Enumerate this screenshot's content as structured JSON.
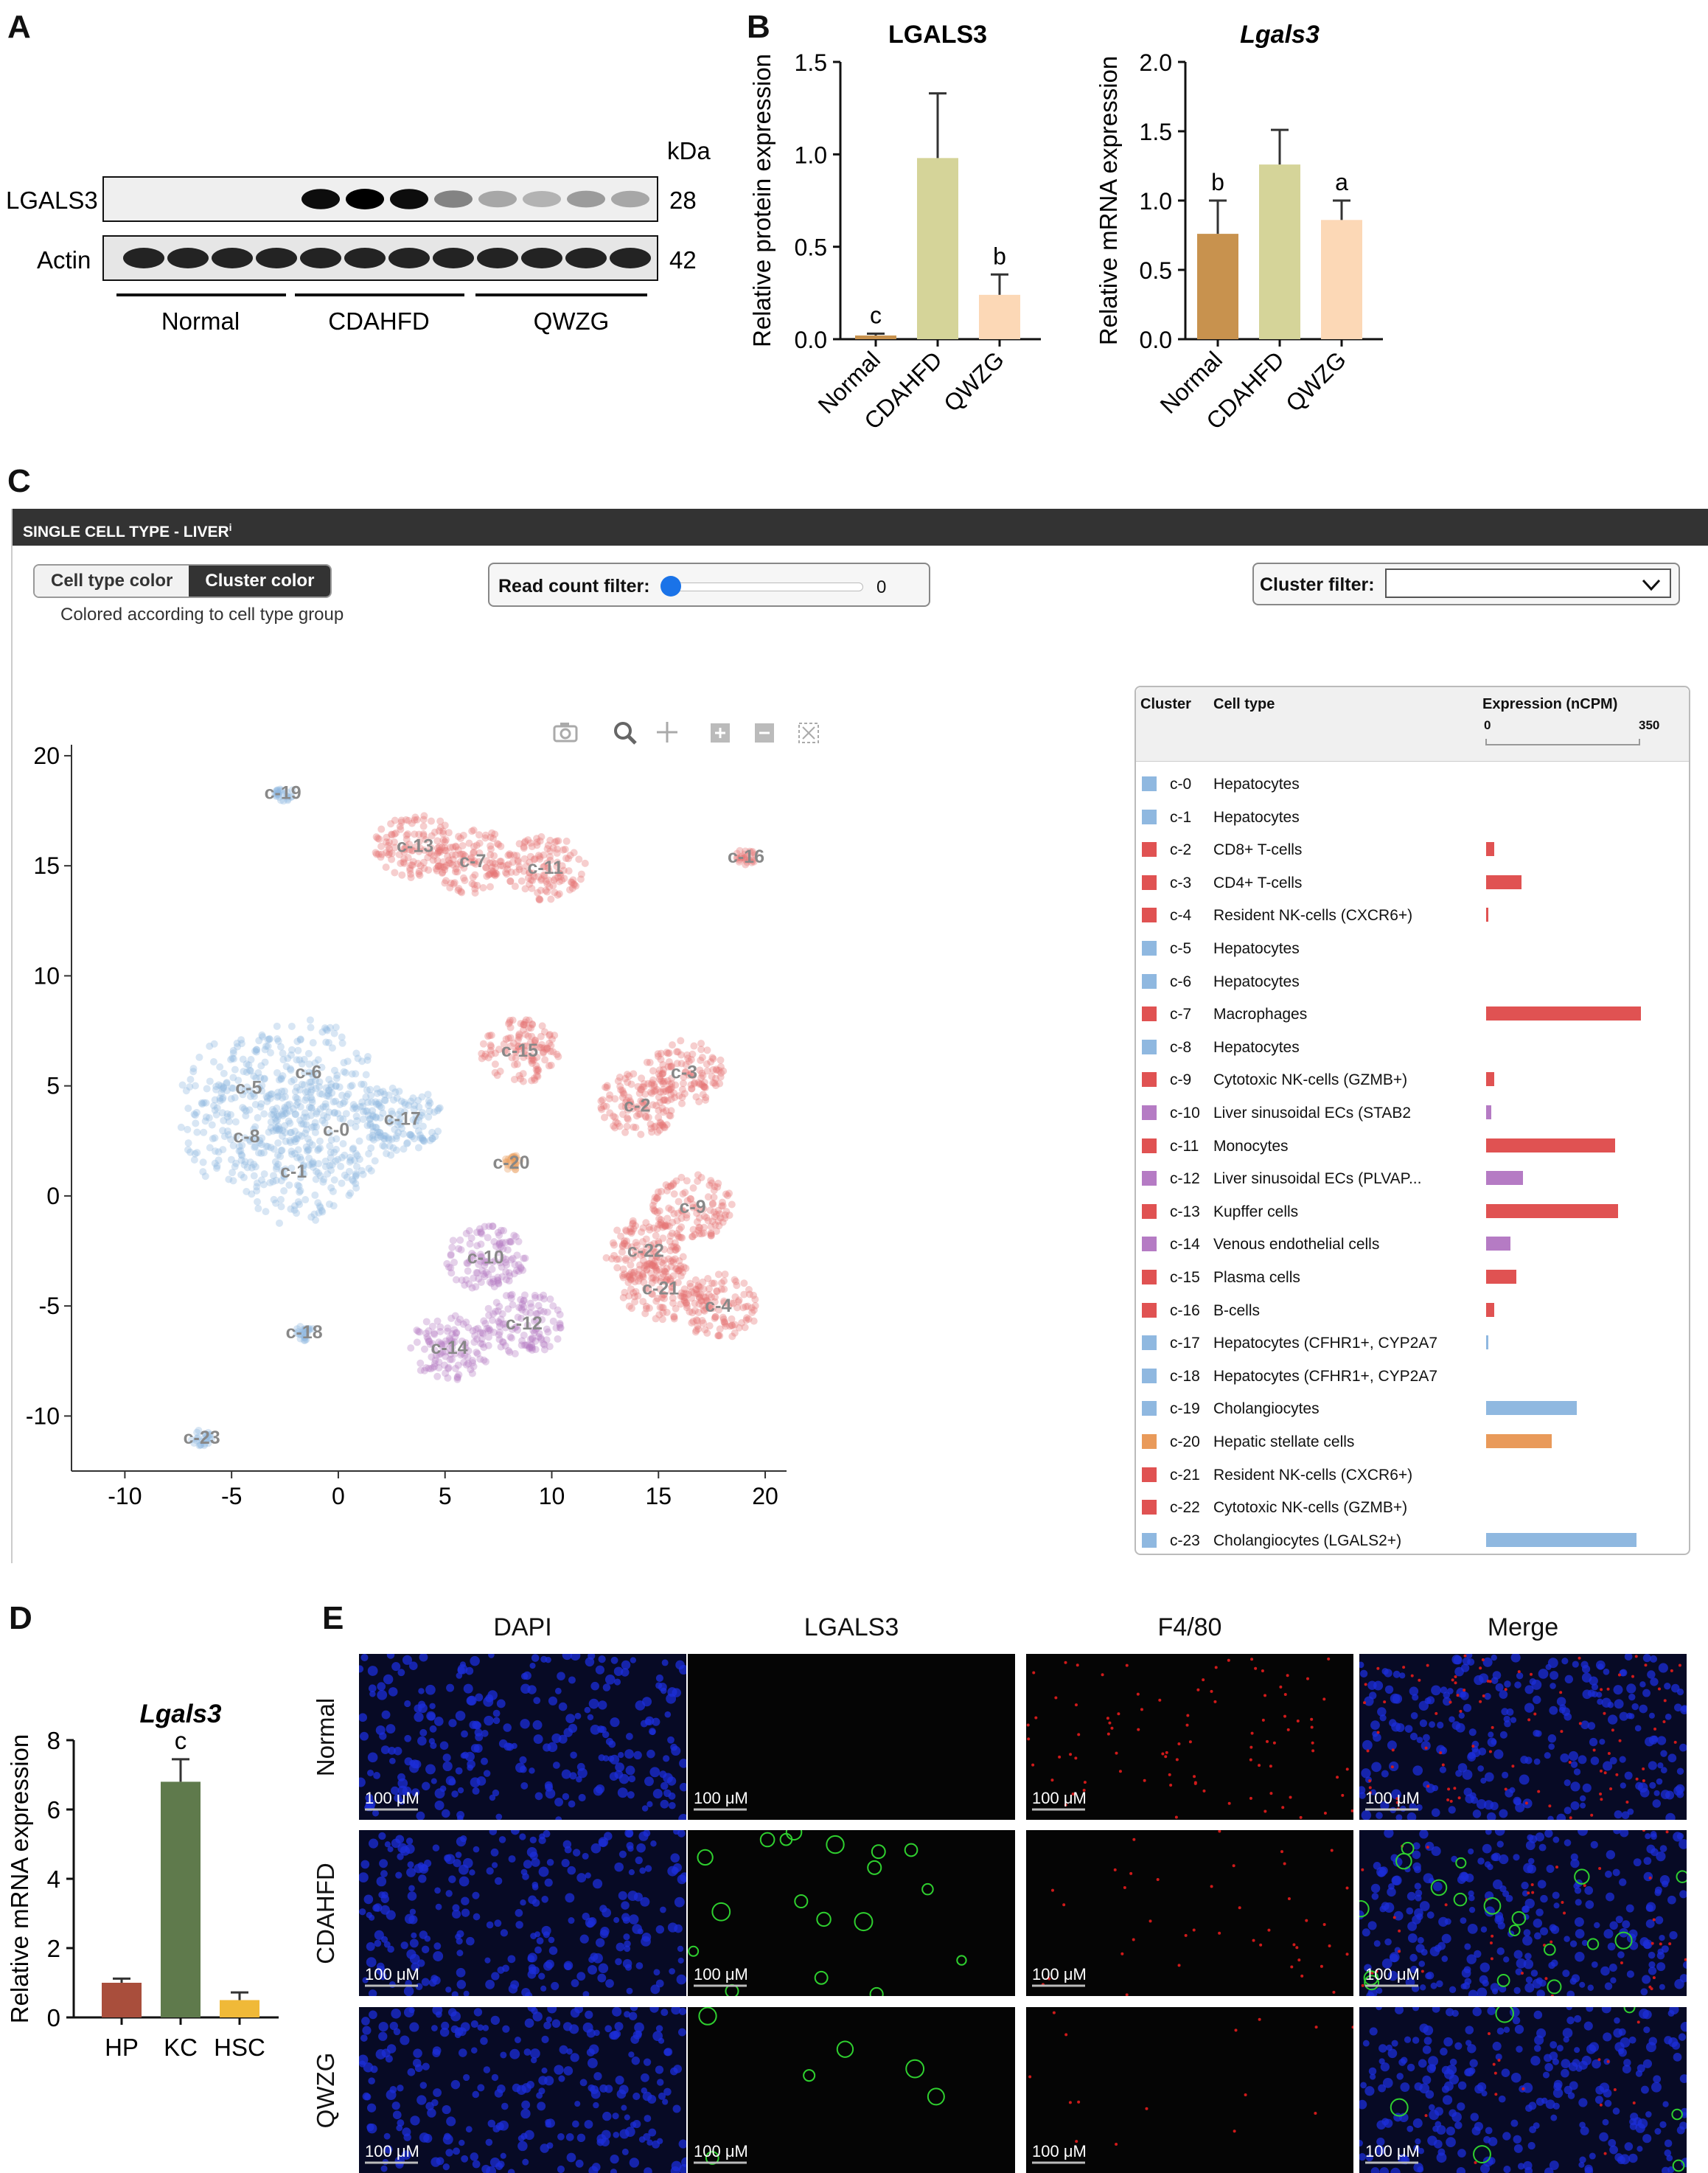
{
  "panels": {
    "a": "A",
    "b": "B",
    "c": "C",
    "d": "D",
    "e": "E"
  },
  "panel_a": {
    "kda": "kDa",
    "bands": [
      {
        "name": "LGALS3",
        "kda": "28"
      },
      {
        "name": "Actin",
        "kda": "42"
      }
    ],
    "groups": [
      "Normal",
      "CDAHFD",
      "QWZG"
    ]
  },
  "chart_data": [
    {
      "id": "B1",
      "type": "bar",
      "title": "LGALS3",
      "ylabel": "Relative protein expression",
      "categories": [
        "Normal",
        "CDAHFD",
        "QWZG"
      ],
      "values": [
        0.02,
        0.98,
        0.24
      ],
      "errors": [
        0.01,
        0.35,
        0.11
      ],
      "letters": [
        "c",
        "",
        "b"
      ],
      "ylim": [
        0,
        1.5
      ],
      "yticks": [
        "0.0",
        "0.5",
        "1.0",
        "1.5"
      ],
      "colors": [
        "#c8924e",
        "#d5d499",
        "#fcd8b6"
      ]
    },
    {
      "id": "B2",
      "type": "bar",
      "title": "Lgals3",
      "ylabel": "Relative mRNA expression",
      "categories": [
        "Normal",
        "CDAHFD",
        "QWZG"
      ],
      "values": [
        0.76,
        1.26,
        0.86
      ],
      "errors": [
        0.24,
        0.25,
        0.14
      ],
      "letters": [
        "b",
        "",
        "a"
      ],
      "ylim": [
        0,
        2.0
      ],
      "yticks": [
        "0.0",
        "0.5",
        "1.0",
        "1.5",
        "2.0"
      ],
      "colors": [
        "#c8924e",
        "#d5d499",
        "#fcd8b6"
      ]
    },
    {
      "id": "C",
      "type": "scatter",
      "title": "",
      "x_ticks": [
        "-10",
        "-5",
        "0",
        "5",
        "10",
        "15",
        "20"
      ],
      "y_ticks": [
        "20",
        "15",
        "10",
        "5",
        "0",
        "-5",
        "-10"
      ],
      "xlim": [
        -12.5,
        21
      ],
      "ylim": [
        -12.5,
        20.5
      ],
      "clusters": [
        {
          "label": "c-19",
          "x": -2.6,
          "y": 18.3,
          "color": "#8fb8e0"
        },
        {
          "label": "c-13",
          "x": 3.6,
          "y": 15.9,
          "color": "#e57373"
        },
        {
          "label": "c-7",
          "x": 6.3,
          "y": 15.2,
          "color": "#e57373"
        },
        {
          "label": "c-11",
          "x": 9.7,
          "y": 14.9,
          "color": "#e57373"
        },
        {
          "label": "c-16",
          "x": 19.1,
          "y": 15.4,
          "color": "#e57373"
        },
        {
          "label": "c-15",
          "x": 8.5,
          "y": 6.6,
          "color": "#e57373"
        },
        {
          "label": "c-3",
          "x": 16.2,
          "y": 5.6,
          "color": "#e57373"
        },
        {
          "label": "c-2",
          "x": 14.0,
          "y": 4.1,
          "color": "#e57373"
        },
        {
          "label": "c-6",
          "x": -1.4,
          "y": 5.6,
          "color": "#8fb8e0"
        },
        {
          "label": "c-5",
          "x": -4.2,
          "y": 4.9,
          "color": "#8fb8e0"
        },
        {
          "label": "c-17",
          "x": 3.0,
          "y": 3.5,
          "color": "#8fb8e0"
        },
        {
          "label": "c-8",
          "x": -4.3,
          "y": 2.7,
          "color": "#8fb8e0"
        },
        {
          "label": "c-0",
          "x": -0.1,
          "y": 3.0,
          "color": "#8fb8e0"
        },
        {
          "label": "c-1",
          "x": -2.1,
          "y": 1.1,
          "color": "#8fb8e0"
        },
        {
          "label": "c-20",
          "x": 8.1,
          "y": 1.5,
          "color": "#e99a5a"
        },
        {
          "label": "c-9",
          "x": 16.6,
          "y": -0.5,
          "color": "#e57373"
        },
        {
          "label": "c-22",
          "x": 14.4,
          "y": -2.5,
          "color": "#e57373"
        },
        {
          "label": "c-10",
          "x": 6.9,
          "y": -2.8,
          "color": "#b57bc4"
        },
        {
          "label": "c-21",
          "x": 15.1,
          "y": -4.2,
          "color": "#e57373"
        },
        {
          "label": "c-4",
          "x": 17.8,
          "y": -5.0,
          "color": "#e57373"
        },
        {
          "label": "c-12",
          "x": 8.7,
          "y": -5.8,
          "color": "#b57bc4"
        },
        {
          "label": "c-18",
          "x": -1.6,
          "y": -6.2,
          "color": "#8fb8e0"
        },
        {
          "label": "c-14",
          "x": 5.2,
          "y": -6.9,
          "color": "#b57bc4"
        },
        {
          "label": "c-23",
          "x": -6.4,
          "y": -11.0,
          "color": "#8fb8e0"
        }
      ]
    },
    {
      "id": "D",
      "type": "bar",
      "title": "Lgals3",
      "ylabel": "Relative mRNA expression",
      "categories": [
        "HP",
        "KC",
        "HSC"
      ],
      "values": [
        1.0,
        6.8,
        0.5
      ],
      "errors": [
        0.12,
        0.65,
        0.22
      ],
      "letters": [
        "",
        "c",
        ""
      ],
      "ylim": [
        0,
        8
      ],
      "yticks": [
        "0",
        "2",
        "4",
        "6",
        "8"
      ],
      "colors": [
        "#a94e3c",
        "#5f7a4c",
        "#f0b938"
      ]
    }
  ],
  "panel_c": {
    "header": "SINGLE CELL TYPE - LIVER",
    "header_mark": "i",
    "toggle": {
      "option1": "Cell type color",
      "option2": "Cluster color"
    },
    "subtitle": "Colored according to cell type group",
    "read_count": {
      "label": "Read count filter:",
      "value": "0"
    },
    "cluster_filter": {
      "label": "Cluster filter:"
    },
    "table": {
      "headers": {
        "cluster": "Cluster",
        "celltype": "Cell type",
        "expression": "Expression (nCPM)",
        "scale_min": "0",
        "scale_max": "350"
      },
      "rows": [
        {
          "cluster": "c-0",
          "type": "Hepatocytes",
          "color": "#8fb8e0",
          "expr": 0
        },
        {
          "cluster": "c-1",
          "type": "Hepatocytes",
          "color": "#8fb8e0",
          "expr": 0
        },
        {
          "cluster": "c-2",
          "type": "CD8+ T-cells",
          "color": "#e05252",
          "expr": 18
        },
        {
          "cluster": "c-3",
          "type": "CD4+ T-cells",
          "color": "#e05252",
          "expr": 80
        },
        {
          "cluster": "c-4",
          "type": "Resident NK-cells (CXCR6+)",
          "color": "#e05252",
          "expr": 5
        },
        {
          "cluster": "c-5",
          "type": "Hepatocytes",
          "color": "#8fb8e0",
          "expr": 0
        },
        {
          "cluster": "c-6",
          "type": "Hepatocytes",
          "color": "#8fb8e0",
          "expr": 0
        },
        {
          "cluster": "c-7",
          "type": "Macrophages",
          "color": "#e05252",
          "expr": 350
        },
        {
          "cluster": "c-8",
          "type": "Hepatocytes",
          "color": "#8fb8e0",
          "expr": 0
        },
        {
          "cluster": "c-9",
          "type": "Cytotoxic NK-cells (GZMB+)",
          "color": "#e05252",
          "expr": 18
        },
        {
          "cluster": "c-10",
          "type": "Liver sinusoidal ECs (STAB2",
          "color": "#b57bc4",
          "expr": 12
        },
        {
          "cluster": "c-11",
          "type": "Monocytes",
          "color": "#e05252",
          "expr": 292
        },
        {
          "cluster": "c-12",
          "type": "Liver sinusoidal ECs (PLVAP...",
          "color": "#b57bc4",
          "expr": 83
        },
        {
          "cluster": "c-13",
          "type": "Kupffer cells",
          "color": "#e05252",
          "expr": 298
        },
        {
          "cluster": "c-14",
          "type": "Venous endothelial cells",
          "color": "#b57bc4",
          "expr": 55
        },
        {
          "cluster": "c-15",
          "type": "Plasma cells",
          "color": "#e05252",
          "expr": 68
        },
        {
          "cluster": "c-16",
          "type": "B-cells",
          "color": "#e05252",
          "expr": 18
        },
        {
          "cluster": "c-17",
          "type": "Hepatocytes (CFHR1+, CYP2A7",
          "color": "#8fb8e0",
          "expr": 5
        },
        {
          "cluster": "c-18",
          "type": "Hepatocytes (CFHR1+, CYP2A7",
          "color": "#8fb8e0",
          "expr": 0
        },
        {
          "cluster": "c-19",
          "type": "Cholangiocytes",
          "color": "#8fb8e0",
          "expr": 205
        },
        {
          "cluster": "c-20",
          "type": "Hepatic stellate cells",
          "color": "#e99a5a",
          "expr": 148
        },
        {
          "cluster": "c-21",
          "type": "Resident NK-cells (CXCR6+)",
          "color": "#e05252",
          "expr": 0
        },
        {
          "cluster": "c-22",
          "type": "Cytotoxic NK-cells (GZMB+)",
          "color": "#e05252",
          "expr": 0
        },
        {
          "cluster": "c-23",
          "type": "Cholangiocytes (LGALS2+)",
          "color": "#8fb8e0",
          "expr": 340
        }
      ]
    }
  },
  "panel_e": {
    "columns": [
      "DAPI",
      "LGALS3",
      "F4/80",
      "Merge"
    ],
    "rows": [
      "Normal",
      "CDAHFD",
      "QWZG"
    ],
    "scale_bar": "100 μM"
  }
}
